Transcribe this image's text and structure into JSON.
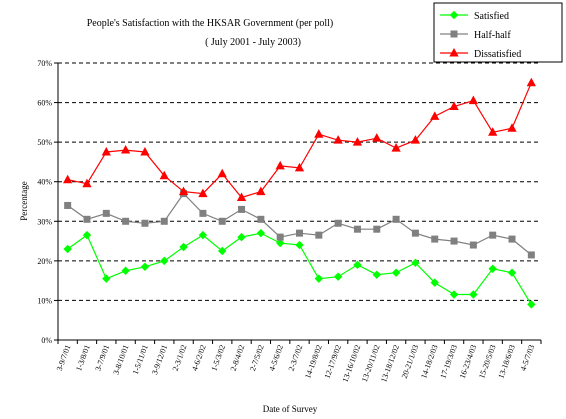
{
  "chart_data": {
    "type": "line",
    "title": "People's Satisfaction with the HKSAR Government  (per poll)",
    "subtitle": "( July 2001 - July 2003)",
    "xlabel": "Date of Survey",
    "ylabel": "Percentage",
    "ylim": [
      0,
      70
    ],
    "yticks": [
      "0%",
      "10%",
      "20%",
      "30%",
      "40%",
      "50%",
      "60%",
      "70%"
    ],
    "grid": true,
    "legend": "top-right",
    "categories": [
      "3-9/7/01",
      "1-3/8/01",
      "3-7/9/01",
      "3-8/10/01",
      "1-5/11/01",
      "3-9/12/01",
      "2-3/1/02",
      "4-6/2/02",
      "1-5/3/02",
      "2-8/4/02",
      "2-7/5/02",
      "4-5/6/02",
      "2-3/7/02",
      "14-19/8/02",
      "12-17/9/02",
      "13-16/10/02",
      "13-20/11/02",
      "13-18/12/02",
      "20-21/1/03",
      "14-18/2/03",
      "17-19/3/03",
      "16-23/4/03",
      "15-20/5/03",
      "13-18/6/03",
      "4-5/7/03"
    ],
    "series": [
      {
        "name": "Satisfied",
        "color": "#00ff00",
        "marker": "diamond",
        "values": [
          23,
          26.5,
          15.5,
          17.5,
          18.5,
          20,
          23.5,
          26.5,
          22.5,
          26,
          27,
          24.5,
          24,
          15.5,
          16,
          19,
          16.5,
          17,
          19.5,
          14.5,
          11.5,
          11.5,
          18,
          17,
          9
        ]
      },
      {
        "name": "Half-half",
        "color": "#808080",
        "marker": "square",
        "values": [
          34,
          30.5,
          32,
          30,
          29.5,
          30,
          37,
          32,
          30,
          33,
          30.5,
          26,
          27,
          26.5,
          29.5,
          28,
          28,
          30.5,
          27,
          25.5,
          25,
          24,
          26.5,
          25.5,
          21.5
        ]
      },
      {
        "name": "Dissatisfied",
        "color": "#ff0000",
        "marker": "triangle",
        "values": [
          40.5,
          39.5,
          47.5,
          48,
          47.5,
          41.5,
          37.5,
          37,
          42,
          36,
          37.5,
          44,
          43.5,
          52,
          50.5,
          50,
          51,
          48.5,
          50.5,
          56.5,
          59,
          60.5,
          52.5,
          53.5,
          65
        ]
      }
    ]
  }
}
